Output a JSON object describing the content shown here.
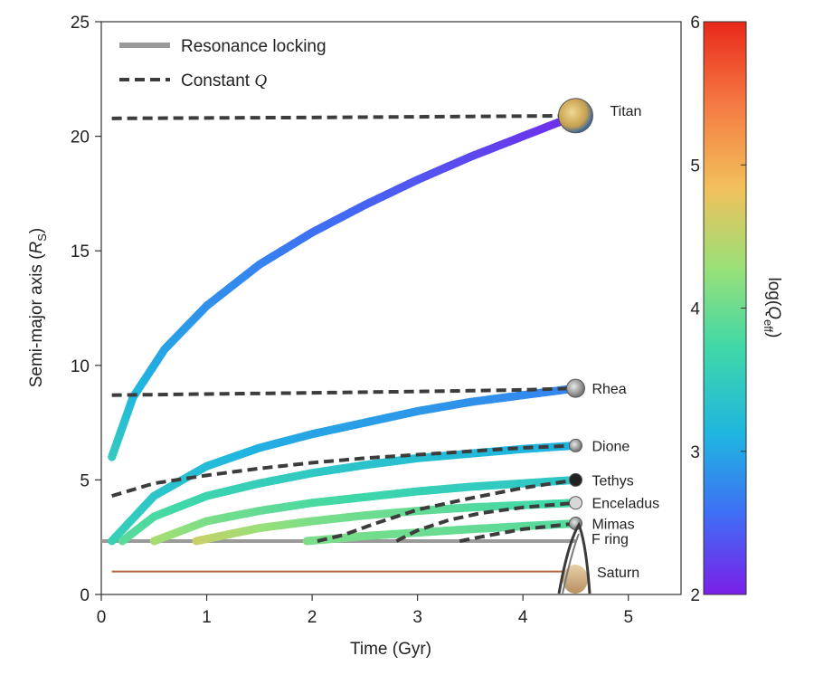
{
  "chart_data": {
    "type": "line",
    "xlabel": "Time (Gyr)",
    "ylabel_main": "Semi-major axis (",
    "ylabel_sym": "R",
    "ylabel_sub": "S",
    "ylabel_close": ")",
    "xlim": [
      0,
      5.5
    ],
    "ylim": [
      0,
      25
    ],
    "xticks": [
      0,
      1,
      2,
      3,
      4,
      5
    ],
    "yticks": [
      0,
      5,
      10,
      15,
      20,
      25
    ],
    "colorbar": {
      "label_main": "log(",
      "label_sym": "Q",
      "label_sub": "eff",
      "label_close": ")",
      "range": [
        2,
        6
      ],
      "ticks": [
        2,
        3,
        4,
        5,
        6
      ]
    },
    "legend": {
      "position": "top-left",
      "entries": [
        {
          "label": "Resonance locking",
          "style": "solid",
          "color": "#9a9a9a"
        },
        {
          "label_main": "Constant ",
          "label_sym": "Q",
          "style": "dashed",
          "color": "#3c3c3c"
        }
      ]
    },
    "reference_lines": [
      {
        "name": "F ring",
        "y": 2.33,
        "x_range": [
          0,
          4.5
        ],
        "color": "#9a9a9a"
      },
      {
        "name": "Saturn",
        "y": 1.0,
        "x_range": [
          0.1,
          4.5
        ],
        "color": "#b4643a"
      }
    ],
    "moons": [
      {
        "name": "Titan",
        "final_a": 20.9,
        "icon_color": "#e0c070",
        "resonance_locking": {
          "x": [
            0.1,
            0.3,
            0.6,
            1.0,
            1.5,
            2.0,
            2.5,
            3.0,
            3.5,
            4.0,
            4.5
          ],
          "a": [
            6.0,
            8.6,
            10.7,
            12.6,
            14.4,
            15.8,
            17.0,
            18.1,
            19.1,
            20.0,
            20.9
          ],
          "logQ": [
            3.5,
            3.2,
            3.0,
            2.85,
            2.75,
            2.6,
            2.5,
            2.4,
            2.3,
            2.2,
            2.1
          ]
        },
        "constant_q": {
          "x": [
            0.1,
            1.0,
            2.0,
            3.0,
            4.0,
            4.5
          ],
          "a": [
            20.78,
            20.8,
            20.82,
            20.85,
            20.88,
            20.9
          ]
        }
      },
      {
        "name": "Rhea",
        "final_a": 9.0,
        "icon_color": "#9a9a9a",
        "resonance_locking": {
          "x": [
            0.1,
            0.5,
            1.0,
            1.5,
            2.0,
            2.5,
            3.0,
            3.5,
            4.0,
            4.5
          ],
          "a": [
            2.33,
            4.3,
            5.6,
            6.4,
            7.0,
            7.5,
            8.0,
            8.4,
            8.7,
            9.0
          ],
          "logQ": [
            3.6,
            3.4,
            3.25,
            3.1,
            3.0,
            2.95,
            2.9,
            2.85,
            2.8,
            2.75
          ]
        },
        "constant_q": {
          "x": [
            0.1,
            1.0,
            2.0,
            3.0,
            4.0,
            4.5
          ],
          "a": [
            8.7,
            8.75,
            8.8,
            8.86,
            8.93,
            9.0
          ]
        }
      },
      {
        "name": "Dione",
        "final_a": 6.5,
        "icon_color": "#9a9a9a",
        "resonance_locking": {
          "x": [
            0.2,
            0.5,
            1.0,
            1.5,
            2.0,
            2.5,
            3.0,
            3.5,
            4.0,
            4.5
          ],
          "a": [
            2.33,
            3.4,
            4.3,
            4.85,
            5.3,
            5.65,
            5.95,
            6.15,
            6.35,
            6.5
          ],
          "logQ": [
            3.9,
            3.8,
            3.65,
            3.55,
            3.45,
            3.35,
            3.3,
            3.2,
            3.15,
            3.1
          ]
        },
        "constant_q": {
          "x": [
            0.1,
            0.5,
            1.0,
            1.5,
            2.0,
            2.5,
            3.0,
            3.5,
            4.0,
            4.5
          ],
          "a": [
            4.3,
            4.85,
            5.2,
            5.5,
            5.75,
            5.95,
            6.1,
            6.25,
            6.4,
            6.5
          ]
        }
      },
      {
        "name": "Tethys",
        "final_a": 5.0,
        "icon_color": "#222222",
        "resonance_locking": {
          "x": [
            0.5,
            1.0,
            1.5,
            2.0,
            2.5,
            3.0,
            3.5,
            4.0,
            4.5
          ],
          "a": [
            2.33,
            3.2,
            3.65,
            4.0,
            4.25,
            4.5,
            4.7,
            4.85,
            5.0
          ],
          "logQ": [
            4.4,
            4.1,
            3.95,
            3.8,
            3.7,
            3.6,
            3.5,
            3.45,
            3.4
          ]
        },
        "constant_q": {
          "x": [
            2.05,
            2.3,
            2.6,
            3.0,
            3.5,
            4.0,
            4.5
          ],
          "a": [
            2.33,
            2.6,
            3.1,
            3.7,
            4.2,
            4.65,
            5.0
          ]
        }
      },
      {
        "name": "Enceladus",
        "final_a": 4.0,
        "icon_color": "#d8d8d8",
        "resonance_locking": {
          "x": [
            0.9,
            1.5,
            2.0,
            2.5,
            3.0,
            3.5,
            4.0,
            4.5
          ],
          "a": [
            2.33,
            2.9,
            3.2,
            3.45,
            3.65,
            3.8,
            3.9,
            4.0
          ],
          "logQ": [
            4.6,
            4.3,
            4.1,
            4.0,
            3.95,
            3.85,
            3.75,
            3.7
          ]
        },
        "constant_q": {
          "x": [
            2.8,
            3.0,
            3.3,
            3.6,
            4.0,
            4.5
          ],
          "a": [
            2.33,
            2.8,
            3.25,
            3.55,
            3.8,
            4.0
          ]
        }
      },
      {
        "name": "Mimas",
        "final_a": 3.1,
        "icon_color": "#9a9a9a",
        "resonance_locking": {
          "x": [
            1.95,
            2.5,
            3.0,
            3.5,
            4.0,
            4.5
          ],
          "a": [
            2.33,
            2.55,
            2.7,
            2.85,
            2.98,
            3.1
          ],
          "logQ": [
            4.1,
            4.05,
            4.0,
            3.95,
            3.9,
            3.85
          ]
        },
        "constant_q": {
          "x": [
            3.4,
            3.7,
            4.0,
            4.3,
            4.5
          ],
          "a": [
            2.33,
            2.6,
            2.85,
            3.0,
            3.1
          ]
        }
      }
    ],
    "colors": {
      "gradient": [
        "#7b1fe8",
        "#3f6ef5",
        "#1fb6e0",
        "#3fd8a8",
        "#9ae078",
        "#f2c05a",
        "#f57842",
        "#e8281a"
      ],
      "dash": "#3c3c3c",
      "resonance_line": "#9a9a9a",
      "saturn_line": "#b4643a"
    }
  }
}
